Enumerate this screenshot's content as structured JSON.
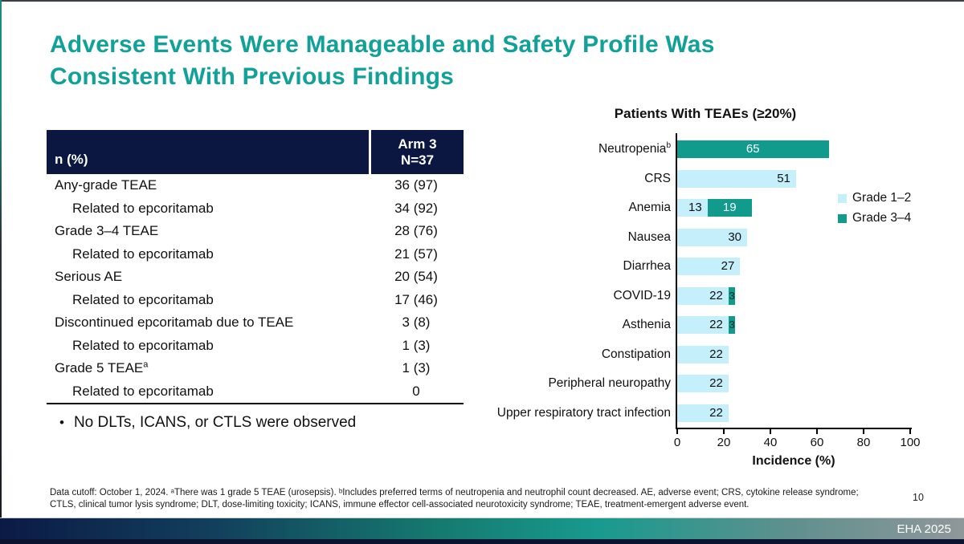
{
  "slide": {
    "title_line1": "Adverse Events Were Manageable and Safety Profile Was",
    "title_line2": "Consistent With Previous Findings",
    "accent_color": "#12a198",
    "navy_color": "#0b1741",
    "bullet": "No DLTs, ICANS, or CTLS were observed",
    "footer_line1": "Data cutoff: October 1, 2024. ᵃThere was 1 grade 5 TEAE (urosepsis). ᵇIncludes preferred terms of neutropenia and neutrophil count decreased. AE, adverse event; CRS, cytokine release syndrome;",
    "footer_line2": "CTLS, clinical tumor lysis syndrome; DLT, dose-limiting toxicity; ICANS, immune effector cell-associated neurotoxicity syndrome; TEAE, treatment-emergent adverse event.",
    "page_number": "10",
    "event_label": "EHA 2025"
  },
  "table": {
    "header_col1": "n (%)",
    "header_col2_line1": "Arm 3",
    "header_col2_line2": "N=37",
    "rows": [
      {
        "label": "Any-grade TEAE",
        "sup": "",
        "indent": false,
        "value": "36 (97)"
      },
      {
        "label": "Related to epcoritamab",
        "sup": "",
        "indent": true,
        "value": "34 (92)"
      },
      {
        "label": "Grade 3–4 TEAE",
        "sup": "",
        "indent": false,
        "value": "28 (76)"
      },
      {
        "label": "Related to epcoritamab",
        "sup": "",
        "indent": true,
        "value": "21 (57)"
      },
      {
        "label": "Serious AE",
        "sup": "",
        "indent": false,
        "value": "20 (54)"
      },
      {
        "label": "Related to epcoritamab",
        "sup": "",
        "indent": true,
        "value": "17 (46)"
      },
      {
        "label": "Discontinued epcoritamab due to TEAE",
        "sup": "",
        "indent": false,
        "value": "3 (8)"
      },
      {
        "label": "Related to epcoritamab",
        "sup": "",
        "indent": true,
        "value": "1 (3)"
      },
      {
        "label": "Grade 5 TEAE",
        "sup": "a",
        "indent": false,
        "value": "1 (3)"
      },
      {
        "label": "Related to epcoritamab",
        "sup": "",
        "indent": true,
        "value": "0"
      }
    ]
  },
  "chart_data": {
    "type": "bar",
    "orientation": "horizontal",
    "stacked": true,
    "title": "Patients With TEAEs (≥20%)",
    "xlabel": "Incidence (%)",
    "xlim": [
      0,
      100
    ],
    "x_ticks": [
      0,
      20,
      40,
      60,
      80,
      100
    ],
    "grid": false,
    "legend_position": "right",
    "categories": [
      "Neutropenia",
      "CRS",
      "Anemia",
      "Nausea",
      "Diarrhea",
      "COVID-19",
      "Asthenia",
      "Constipation",
      "Peripheral neuropathy",
      "Upper respiratory tract infection"
    ],
    "category_sups": [
      "b",
      "",
      "",
      "",
      "",
      "",
      "",
      "",
      "",
      ""
    ],
    "series": [
      {
        "name": "Grade 1–2",
        "color": "#c5effa",
        "values": [
          null,
          51,
          13,
          30,
          27,
          22,
          22,
          22,
          22,
          22
        ]
      },
      {
        "name": "Grade 3–4",
        "color": "#109b8d",
        "values": [
          65,
          null,
          19,
          null,
          null,
          3,
          3,
          null,
          null,
          null
        ]
      }
    ]
  }
}
